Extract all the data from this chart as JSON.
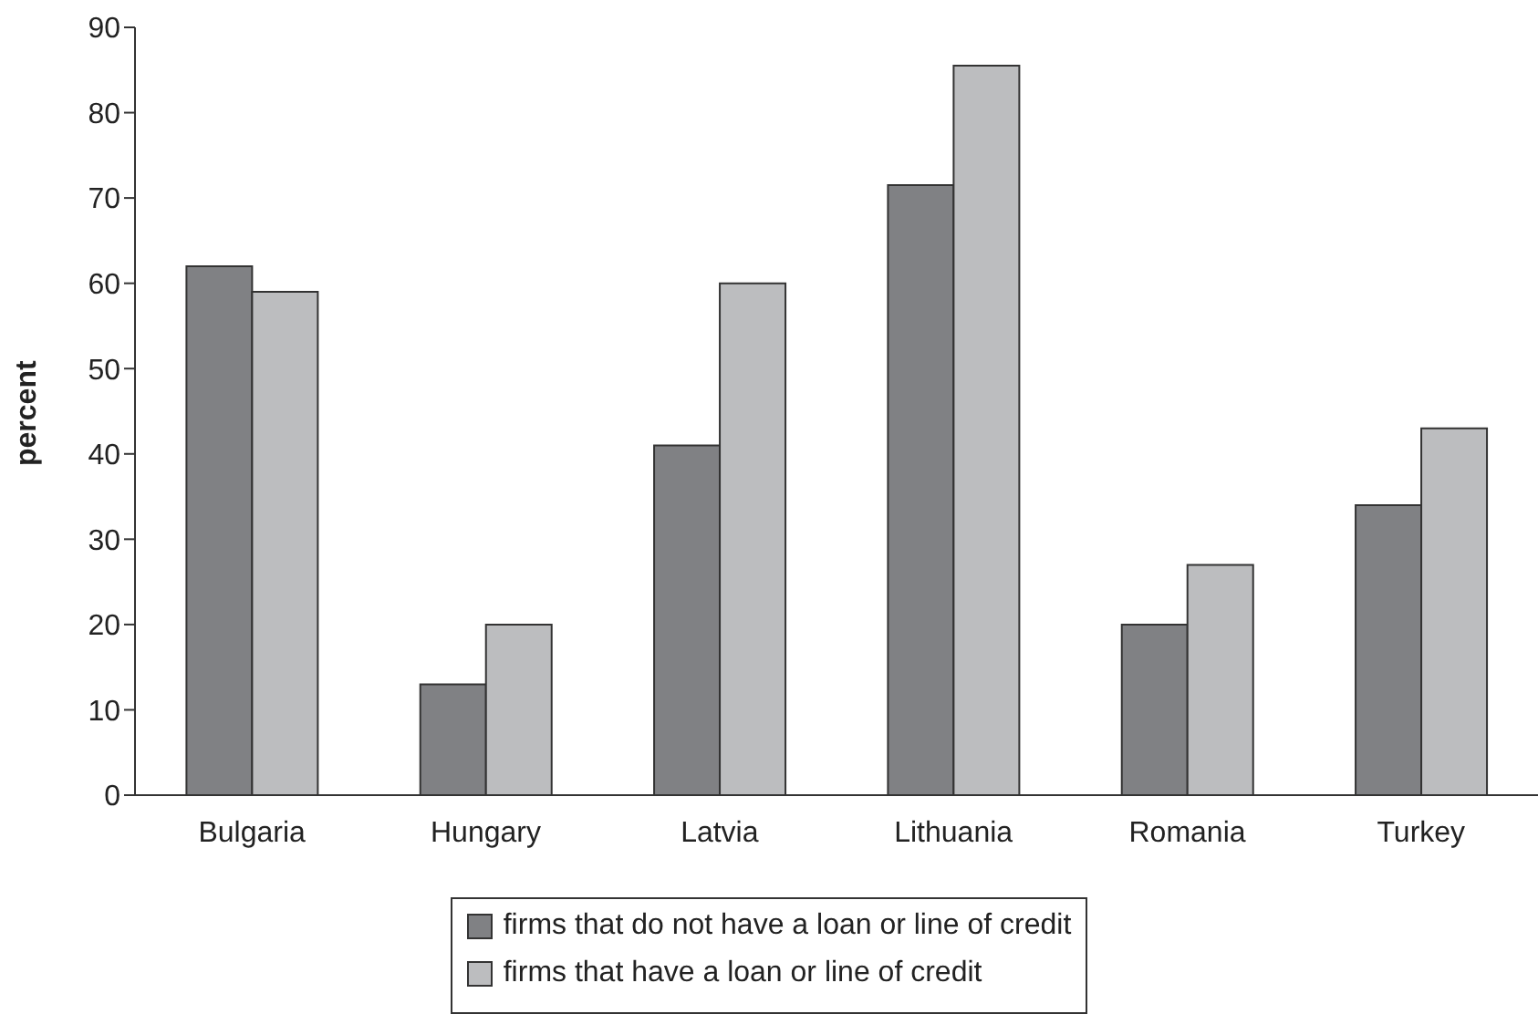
{
  "chart_data": {
    "type": "bar",
    "ylabel": "percent",
    "categories": [
      "Bulgaria",
      "Hungary",
      "Latvia",
      "Lithuania",
      "Romania",
      "Turkey"
    ],
    "series": [
      {
        "name": "firms that do not have a loan or line of credit",
        "color": "#808184",
        "values": [
          62,
          13,
          41,
          71.5,
          20,
          34
        ]
      },
      {
        "name": "firms that have a loan or line of credit",
        "color": "#bcbdbf",
        "values": [
          59,
          20,
          60,
          85.5,
          27,
          43
        ]
      }
    ],
    "ylim": [
      0,
      90
    ],
    "yticks": [
      0,
      10,
      20,
      30,
      40,
      50,
      60,
      70,
      80,
      90
    ],
    "grid": false,
    "legend": "bottom"
  }
}
